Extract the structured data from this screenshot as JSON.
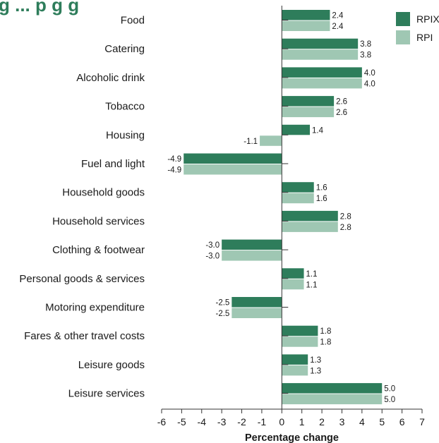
{
  "chart_data": {
    "type": "bar",
    "orientation": "horizontal",
    "title": "g  ... p   g  g",
    "categories": [
      "Food",
      "Catering",
      "Alcoholic drink",
      "Tobacco",
      "Housing",
      "Fuel and light",
      "Household goods",
      "Household services",
      "Clothing & footwear",
      "Personal goods & services",
      "Motoring expenditure",
      "Fares & other travel costs",
      "Leisure goods",
      "Leisure services"
    ],
    "series": [
      {
        "name": "RPIX",
        "color": "#2e7d5b",
        "values": [
          2.4,
          3.8,
          4.0,
          2.6,
          1.4,
          -4.9,
          1.6,
          2.8,
          -3.0,
          1.1,
          -2.5,
          1.8,
          1.3,
          5.0
        ],
        "labels": [
          "2.4",
          "3.8",
          "4.0",
          "2.6",
          "1.4",
          "-4.9",
          "1.6",
          "2.8",
          "-3.0",
          "1.1",
          "-2.5",
          "1.8",
          "1.3",
          "5.0"
        ]
      },
      {
        "name": "RPI",
        "color": "#9fc7b3",
        "values": [
          2.4,
          3.8,
          4.0,
          2.6,
          -1.1,
          -4.9,
          1.6,
          2.8,
          -3.0,
          1.1,
          -2.5,
          1.8,
          1.3,
          5.0
        ],
        "labels": [
          "2.4",
          "3.8",
          "4.0",
          "2.6",
          "-1.1",
          "-4.9",
          "1.6",
          "2.8",
          "-3.0",
          "1.1",
          "-2.5",
          "1.8",
          "1.3",
          "5.0"
        ]
      }
    ],
    "xlabel": "Percentage change",
    "xlim": [
      -6,
      7
    ],
    "xticks": [
      "-6",
      "-5",
      "-4",
      "-3",
      "-2",
      "-1",
      "0",
      "1",
      "2",
      "3",
      "4",
      "5",
      "6",
      "7"
    ],
    "grid": false,
    "legend_position": "top-right",
    "title_color": "#2e7d5b"
  }
}
